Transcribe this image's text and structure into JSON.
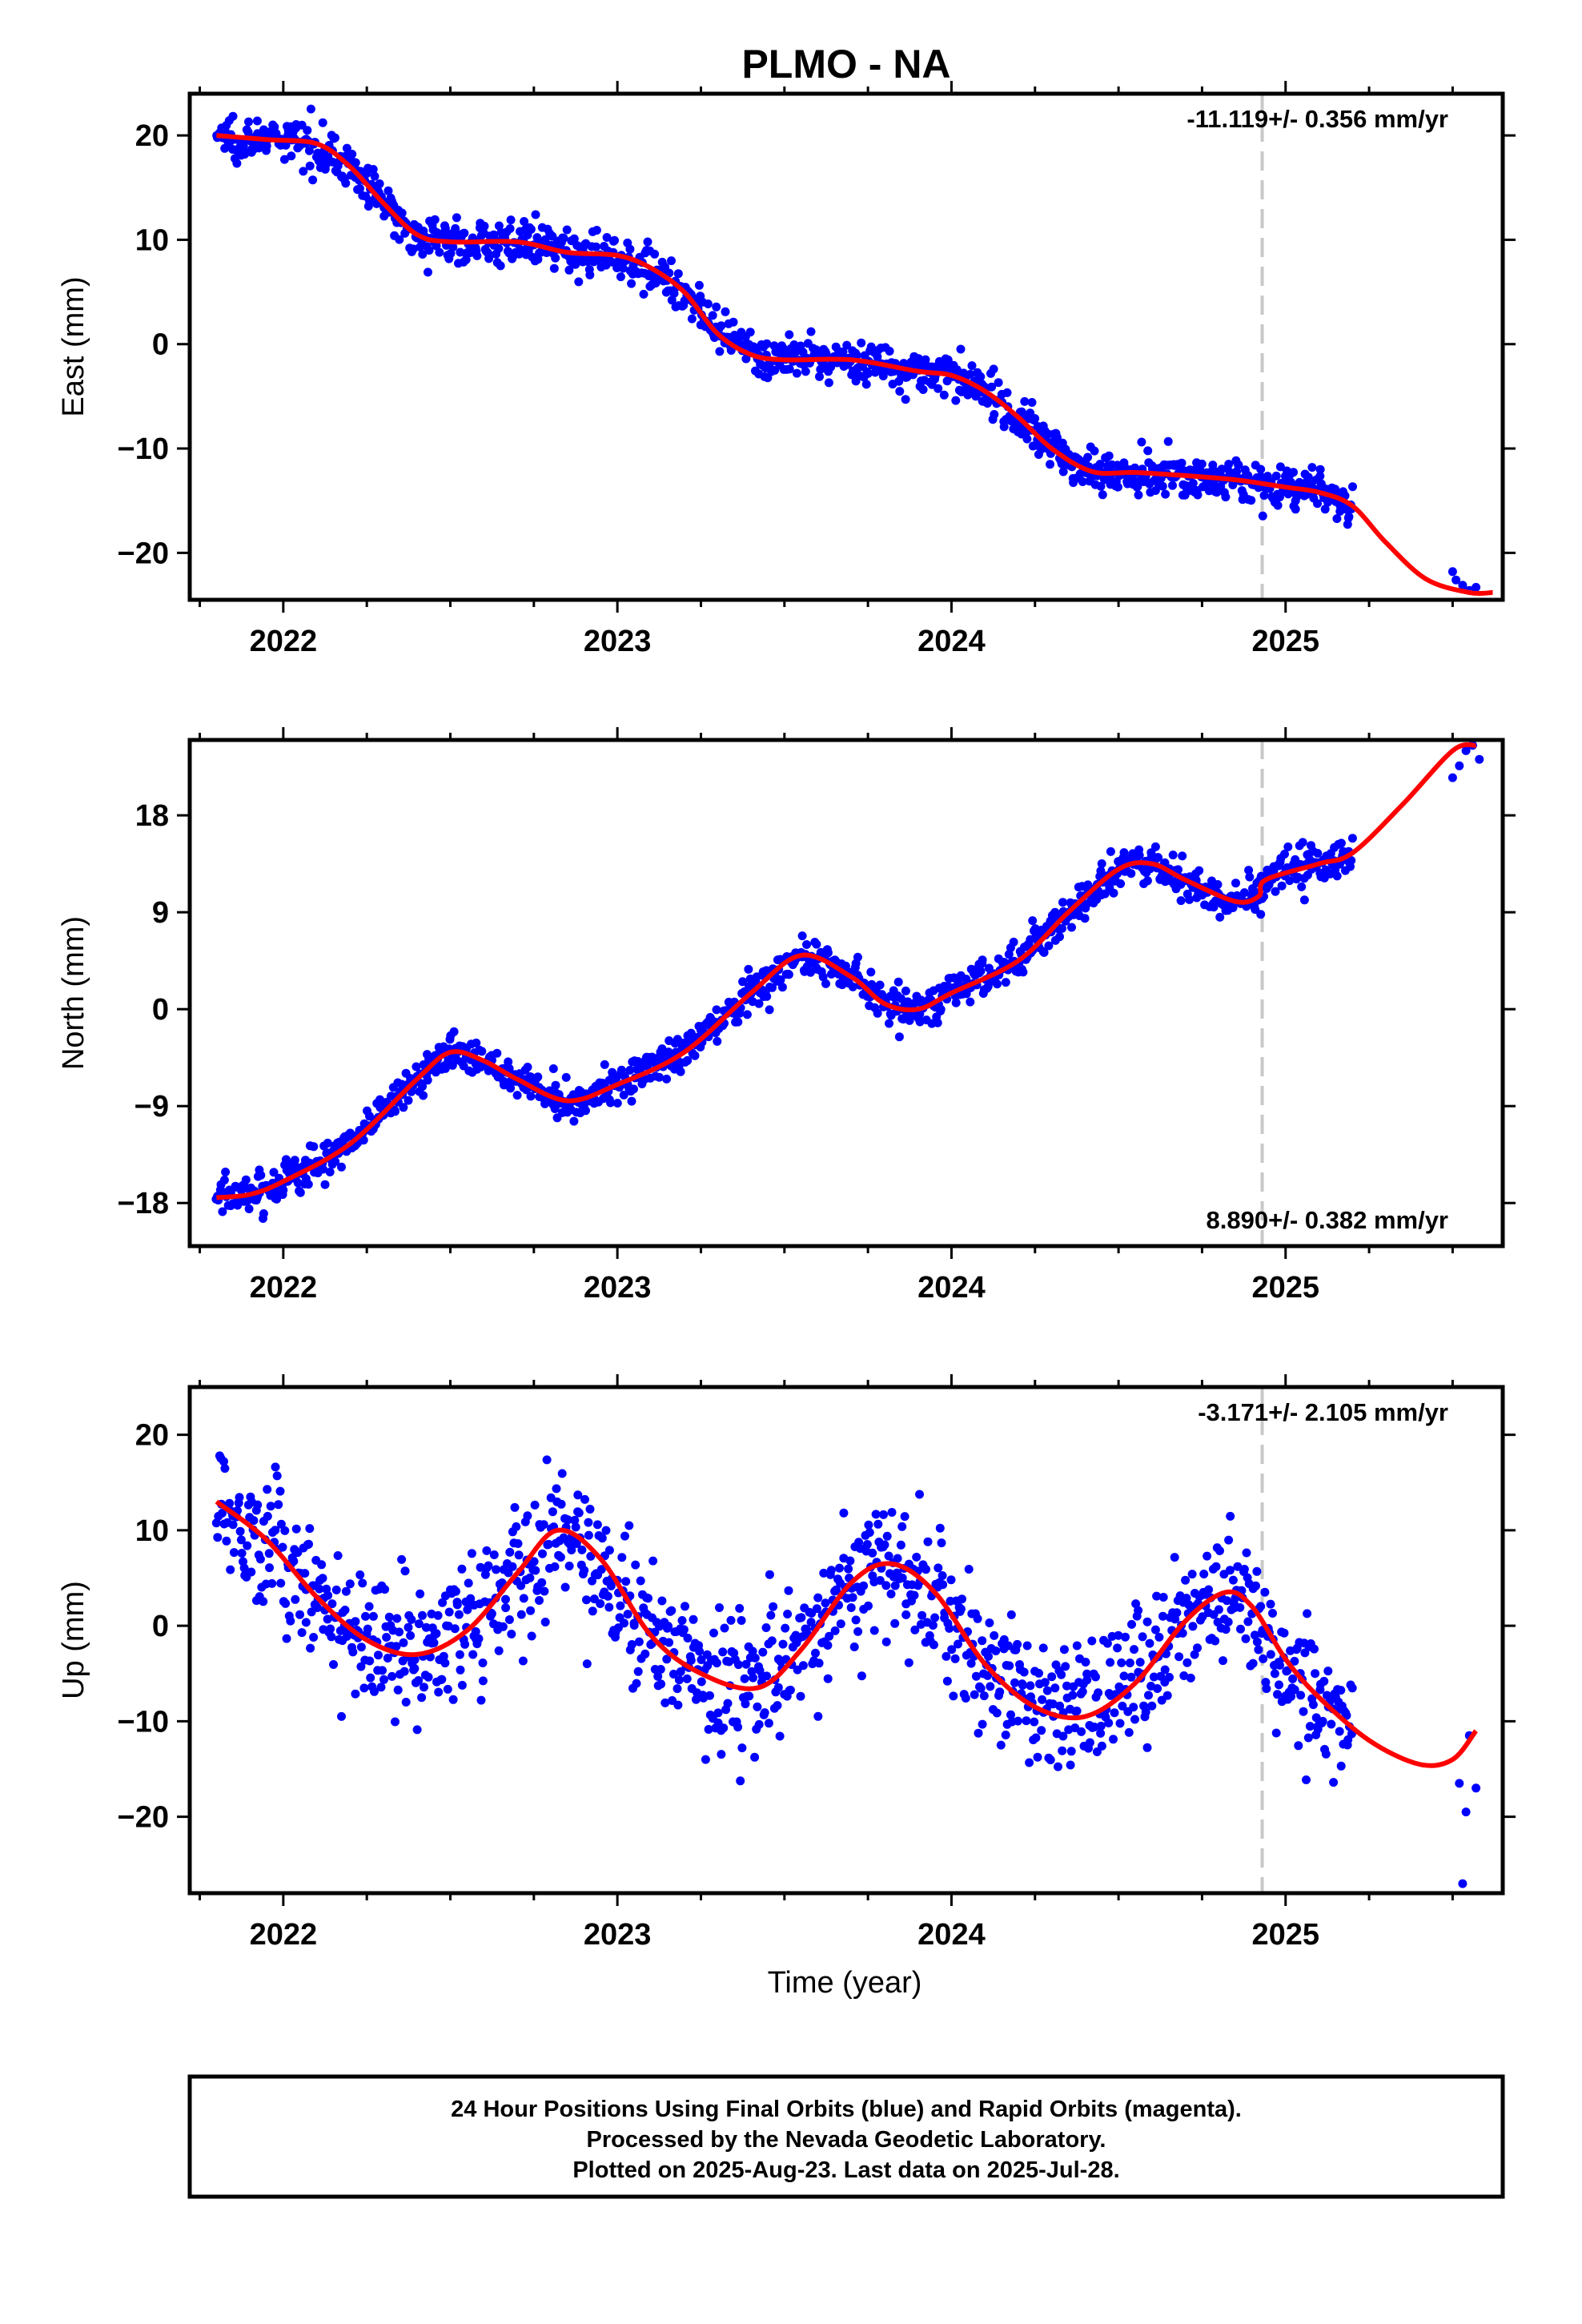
{
  "title": "PLMO - NA",
  "x_label": "Time (year)",
  "footer": {
    "line1": "24 Hour Positions Using Final Orbits (blue) and Rapid Orbits (magenta).",
    "line2": "Processed by the Nevada Geodetic Laboratory.",
    "line3": "Plotted on 2025-Aug-23. Last data on 2025-Jul-28."
  },
  "colors": {
    "points": "#0000ff",
    "model": "#ff0000",
    "marker": "#c8c8c8",
    "frame": "#000000"
  },
  "chart_data": [
    {
      "type": "scatter",
      "ylabel": "East (mm)",
      "rate_label": "-11.119+/- 0.356 mm/yr",
      "rate_position": "top-right",
      "xlim": [
        2021.72,
        2025.65
      ],
      "ylim": [
        -24.5,
        24
      ],
      "xticks": [
        2022,
        2023,
        2024,
        2025
      ],
      "xtick_labels": [
        "2022",
        "2023",
        "2024",
        "2025"
      ],
      "yticks": [
        20,
        10,
        0,
        -10,
        -20
      ],
      "ytick_labels": [
        "20",
        "10",
        "0",
        "−10",
        "−20"
      ],
      "marker_year": 2024.93,
      "data_span": [
        2021.8,
        2025.2
      ],
      "late_points": [
        [
          2025.5,
          -21.8
        ],
        [
          2025.51,
          -22.6
        ],
        [
          2025.53,
          -23.1
        ],
        [
          2025.55,
          -23.6
        ],
        [
          2025.57,
          -23.3
        ]
      ],
      "noise": 1.0,
      "model": {
        "x": [
          2021.8,
          2021.95,
          2022.1,
          2022.2,
          2022.3,
          2022.4,
          2022.5,
          2022.7,
          2022.85,
          2023.0,
          2023.1,
          2023.2,
          2023.3,
          2023.4,
          2023.5,
          2023.7,
          2023.9,
          2024.0,
          2024.1,
          2024.2,
          2024.3,
          2024.42,
          2024.55,
          2024.7,
          2024.85,
          2025.0,
          2025.1,
          2025.2,
          2025.3,
          2025.42,
          2025.55,
          2025.62
        ],
        "y": [
          20.0,
          19.6,
          19.2,
          17.0,
          13.5,
          10.5,
          9.8,
          9.8,
          8.8,
          8.5,
          7.3,
          5.0,
          1.0,
          -1.0,
          -1.5,
          -1.5,
          -2.6,
          -3.0,
          -4.5,
          -7.0,
          -10.0,
          -12.2,
          -12.3,
          -12.6,
          -13.0,
          -13.7,
          -14.2,
          -15.5,
          -19.0,
          -22.5,
          -23.8,
          -23.8
        ]
      }
    },
    {
      "type": "scatter",
      "ylabel": "North (mm)",
      "rate_label": "8.890+/- 0.382 mm/yr",
      "rate_position": "bottom-right",
      "xlim": [
        2021.72,
        2025.65
      ],
      "ylim": [
        -22,
        25
      ],
      "xticks": [
        2022,
        2023,
        2024,
        2025
      ],
      "xtick_labels": [
        "2022",
        "2023",
        "2024",
        "2025"
      ],
      "yticks": [
        18,
        9,
        0,
        -9,
        -18
      ],
      "ytick_labels": [
        "18",
        "9",
        "0",
        "−9",
        "−18"
      ],
      "marker_year": 2024.93,
      "data_span": [
        2021.8,
        2025.2
      ],
      "late_points": [
        [
          2025.5,
          21.5
        ],
        [
          2025.52,
          22.6
        ],
        [
          2025.54,
          24.0
        ],
        [
          2025.56,
          24.5
        ],
        [
          2025.58,
          23.2
        ]
      ],
      "noise": 0.9,
      "model": {
        "x": [
          2021.8,
          2021.9,
          2022.0,
          2022.2,
          2022.4,
          2022.5,
          2022.6,
          2022.7,
          2022.85,
          2023.0,
          2023.2,
          2023.4,
          2023.55,
          2023.7,
          2023.8,
          2023.9,
          2024.0,
          2024.2,
          2024.35,
          2024.5,
          2024.6,
          2024.7,
          2024.85,
          2024.92,
          2024.94,
          2025.1,
          2025.2,
          2025.35,
          2025.5,
          2025.57
        ],
        "y": [
          -17.5,
          -17.2,
          -16.0,
          -12.5,
          -6.5,
          -4.0,
          -4.8,
          -6.5,
          -8.5,
          -7.0,
          -4.0,
          1.5,
          5.0,
          3.0,
          0.5,
          0.0,
          1.5,
          4.5,
          9.0,
          13.0,
          13.5,
          12.0,
          10.0,
          10.5,
          12.0,
          13.5,
          14.5,
          19.0,
          24.0,
          24.5
        ]
      }
    },
    {
      "type": "scatter",
      "ylabel": "Up (mm)",
      "rate_label": "-3.171+/- 2.105 mm/yr",
      "rate_position": "top-right",
      "xlim": [
        2021.72,
        2025.65
      ],
      "ylim": [
        -28,
        25
      ],
      "xticks": [
        2022,
        2023,
        2024,
        2025
      ],
      "xtick_labels": [
        "2022",
        "2023",
        "2024",
        "2025"
      ],
      "yticks": [
        20,
        10,
        0,
        -10,
        -20
      ],
      "ytick_labels": [
        "20",
        "10",
        "0",
        "−10",
        "−20"
      ],
      "marker_year": 2024.93,
      "data_span": [
        2021.8,
        2025.2
      ],
      "late_points": [
        [
          2025.52,
          -16.5
        ],
        [
          2025.54,
          -19.5
        ],
        [
          2025.55,
          -11.5
        ],
        [
          2025.57,
          -17.0
        ],
        [
          2025.53,
          -27.0
        ]
      ],
      "noise": 3.6,
      "model": {
        "x": [
          2021.8,
          2021.95,
          2022.1,
          2022.25,
          2022.4,
          2022.55,
          2022.7,
          2022.82,
          2022.95,
          2023.1,
          2023.25,
          2023.42,
          2023.55,
          2023.7,
          2023.82,
          2023.95,
          2024.1,
          2024.25,
          2024.4,
          2024.55,
          2024.7,
          2024.82,
          2024.9,
          2025.0,
          2025.1,
          2025.25,
          2025.4,
          2025.5,
          2025.57
        ],
        "y": [
          13.0,
          9.0,
          3.0,
          -1.5,
          -3.0,
          -0.5,
          5.5,
          10.0,
          7.0,
          -1.0,
          -5.0,
          -6.5,
          -2.5,
          4.5,
          6.5,
          3.5,
          -4.0,
          -8.5,
          -9.5,
          -6.0,
          0.5,
          3.5,
          2.0,
          -3.5,
          -7.5,
          -12.0,
          -14.5,
          -14.0,
          -11.0
        ]
      }
    }
  ]
}
